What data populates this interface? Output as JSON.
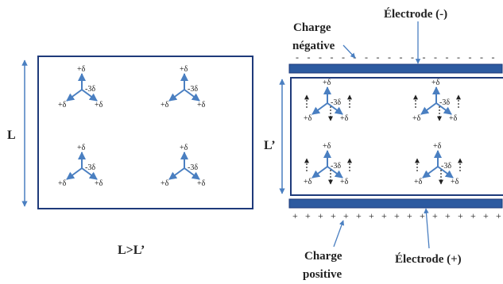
{
  "left": {
    "dimension_label": "L",
    "comparison_label": "L>L’"
  },
  "right": {
    "dimension_label": "L’",
    "top_charge_label_line1": "Charge",
    "top_charge_label_line2": "négative",
    "top_electrode_label": "Électrode (-)",
    "bottom_charge_label_line1": "Charge",
    "bottom_charge_label_line2": "positive",
    "bottom_electrode_label": "Électrode (+)"
  },
  "molecule": {
    "positive_partial": "+δ",
    "negative_partial": "-3δ"
  },
  "colors": {
    "frame": "#1e3a7a",
    "arrow": "#4a7fc1",
    "electrode": "#2c5aa0",
    "text": "#222222"
  }
}
